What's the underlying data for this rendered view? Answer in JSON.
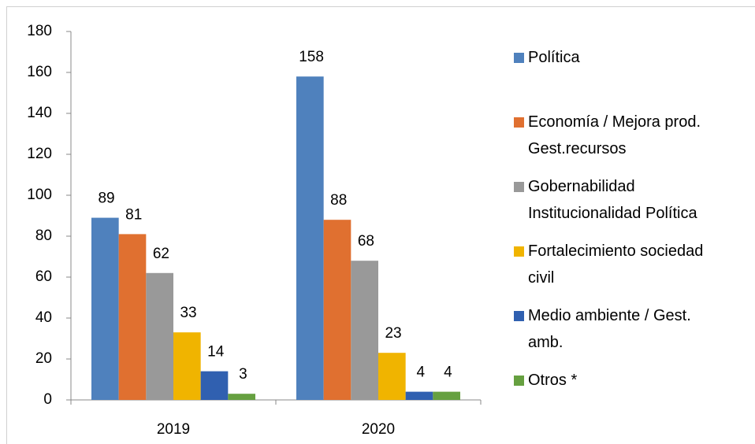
{
  "chart_data": {
    "type": "bar",
    "categories": [
      "2019",
      "2020"
    ],
    "series": [
      {
        "name": "Política",
        "color": "#4f81bd",
        "values": [
          89,
          158
        ]
      },
      {
        "name": "Economía / Mejora prod. Gest.recursos",
        "color": "#e07030",
        "values": [
          81,
          88
        ]
      },
      {
        "name": "Gobernabilidad Institucionalidad Política",
        "color": "#999999",
        "values": [
          62,
          68
        ]
      },
      {
        "name": "Fortalecimiento sociedad civil",
        "color": "#f0b400",
        "values": [
          33,
          23
        ]
      },
      {
        "name": "Medio ambiente / Gest. amb.",
        "color": "#3060b0",
        "values": [
          14,
          4
        ]
      },
      {
        "name": "Otros *",
        "color": "#66a040",
        "values": [
          3,
          4
        ]
      }
    ],
    "ylim": [
      0,
      180
    ],
    "yticks": [
      0,
      20,
      40,
      60,
      80,
      100,
      120,
      140,
      160,
      180
    ],
    "legend": "right"
  }
}
